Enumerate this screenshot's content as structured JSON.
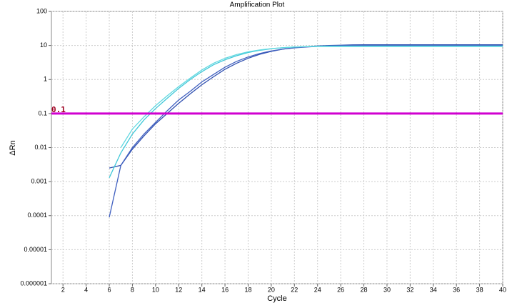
{
  "chart_data": {
    "type": "line",
    "title": "Amplification Plot",
    "xlabel": "Cycle",
    "ylabel": "ΔRn",
    "log_y": true,
    "grid": true,
    "xlim": [
      1,
      40
    ],
    "xticks": [
      2,
      4,
      6,
      8,
      10,
      12,
      14,
      16,
      18,
      20,
      22,
      24,
      26,
      28,
      30,
      32,
      34,
      36,
      38,
      40
    ],
    "ylim": [
      1e-06,
      100
    ],
    "yticks": [
      1e-06,
      1e-05,
      0.0001,
      0.001,
      0.01,
      0.1,
      1,
      10,
      100
    ],
    "threshold": 0.1,
    "threshold_color": "#d000d0",
    "x": [
      6,
      7,
      8,
      9,
      10,
      11,
      12,
      13,
      14,
      15,
      16,
      17,
      18,
      19,
      20,
      21,
      22,
      23,
      24,
      25,
      26,
      27,
      28,
      29,
      30,
      31,
      32,
      33,
      34,
      35,
      36,
      37,
      38,
      39,
      40
    ],
    "series": [
      {
        "color": "#3050b0",
        "values": [
          0.0025,
          0.003,
          0.009,
          0.022,
          0.05,
          0.1,
          0.2,
          0.38,
          0.7,
          1.2,
          2,
          3,
          4.2,
          5.5,
          6.7,
          7.8,
          8.6,
          9.2,
          9.7,
          10,
          10.2,
          10.4,
          10.5,
          10.5,
          10.5,
          10.5,
          10.5,
          10.5,
          10.5,
          10.5,
          10.5,
          10.5,
          10.5,
          10.5,
          10.5
        ]
      },
      {
        "color": "#4060c0",
        "values": [
          9e-05,
          0.003,
          0.01,
          0.025,
          0.055,
          0.12,
          0.25,
          0.45,
          0.85,
          1.4,
          2.3,
          3.4,
          4.6,
          5.8,
          6.9,
          7.8,
          8.5,
          9,
          9.4,
          9.7,
          9.9,
          10,
          10,
          10,
          10,
          10,
          10,
          10,
          10,
          10,
          10,
          10,
          10,
          10,
          10
        ]
      },
      {
        "color": "#40c8d8",
        "values": [
          0.0013,
          0.007,
          0.025,
          0.065,
          0.14,
          0.28,
          0.55,
          1,
          1.7,
          2.7,
          3.8,
          5,
          6.2,
          7.2,
          8,
          8.6,
          9,
          9.3,
          9.5,
          9.6,
          9.6,
          9.6,
          9.6,
          9.6,
          9.6,
          9.6,
          9.6,
          9.6,
          9.6,
          9.6,
          9.6,
          9.6,
          9.6,
          9.6,
          9.6
        ]
      },
      {
        "color": "#60d8e0",
        "values": [
          null,
          0.01,
          0.035,
          0.08,
          0.17,
          0.33,
          0.62,
          1.1,
          1.9,
          3,
          4.2,
          5.4,
          6.5,
          7.4,
          8.1,
          8.6,
          9,
          9.2,
          9.3,
          9.3,
          9.3,
          9.3,
          9.3,
          9.3,
          9.3,
          9.3,
          9.3,
          9.3,
          9.3,
          9.3,
          9.3,
          9.3,
          9.3,
          9.3,
          9.3
        ]
      }
    ]
  }
}
